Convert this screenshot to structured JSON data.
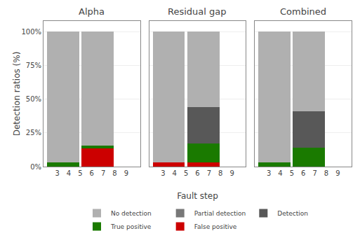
{
  "chart_data": [
    {
      "type": "bar",
      "stacked": true,
      "title": "Alpha",
      "ylabel": "Detection ratios (%)",
      "x": [
        3.5,
        6.5
      ],
      "xlim": [
        1.8,
        10.2
      ],
      "xticks": [
        3,
        4,
        5,
        6,
        7,
        8,
        9
      ],
      "ylim": [
        0,
        108
      ],
      "yticks": [
        {
          "value": 0,
          "label": "0%"
        },
        {
          "value": 25,
          "label": "25%"
        },
        {
          "value": 50,
          "label": "50%"
        },
        {
          "value": 75,
          "label": "75%"
        },
        {
          "value": 100,
          "label": "100%"
        }
      ],
      "grid": true,
      "legend": "bottom",
      "series": [
        {
          "name": "False positive",
          "color": "#cc0000",
          "values": [
            0,
            13.333333333333334
          ]
        },
        {
          "name": "True positive",
          "color": "#1a7a00",
          "values": [
            3,
            2.2222222222222223
          ]
        },
        {
          "name": "Detection",
          "color": "#585858",
          "values": [
            0,
            0
          ]
        },
        {
          "name": "Partial detection",
          "color": "#787878",
          "values": [
            0,
            0
          ]
        },
        {
          "name": "No detection",
          "color": "#b0b0b0",
          "values": [
            97,
            84.44444444444444
          ]
        }
      ]
    },
    {
      "type": "bar",
      "stacked": true,
      "title": "Residual gap",
      "xlabel": "Fault step",
      "x": [
        3.5,
        6.5
      ],
      "xlim": [
        1.8,
        10.2
      ],
      "xticks": [
        3,
        4,
        5,
        6,
        7,
        8,
        9
      ],
      "ylim": [
        0,
        108
      ],
      "yticks": [
        0,
        25,
        50,
        75,
        100
      ],
      "grid": true,
      "tick_labels": "x",
      "series": [
        {
          "name": "False positive",
          "color": "#cc0000",
          "values": [
            3,
            3
          ]
        },
        {
          "name": "True positive",
          "color": "#1a7a00",
          "values": [
            0,
            14
          ]
        },
        {
          "name": "Detection",
          "color": "#585858",
          "values": [
            0,
            27
          ]
        },
        {
          "name": "Partial detection",
          "color": "#787878",
          "values": [
            0,
            0
          ]
        },
        {
          "name": "No detection",
          "color": "#b0b0b0",
          "values": [
            97,
            56
          ]
        }
      ]
    },
    {
      "type": "bar",
      "stacked": true,
      "title": "Combined",
      "x": [
        3.5,
        6.5
      ],
      "xlim": [
        1.8,
        10.2
      ],
      "xticks": [
        3,
        4,
        5,
        6,
        7,
        8,
        9
      ],
      "ylim": [
        0,
        108
      ],
      "yticks": [
        0,
        25,
        50,
        75,
        100
      ],
      "grid": true,
      "tick_labels": "x",
      "series": [
        {
          "name": "False positive",
          "color": "#cc0000",
          "values": [
            0,
            0
          ]
        },
        {
          "name": "True positive",
          "color": "#1a7a00",
          "values": [
            3,
            14
          ]
        },
        {
          "name": "Detection",
          "color": "#585858",
          "values": [
            0,
            27
          ]
        },
        {
          "name": "Partial detection",
          "color": "#787878",
          "values": [
            0,
            0
          ]
        },
        {
          "name": "No detection",
          "color": "#b0b0b0",
          "values": [
            97,
            59
          ]
        }
      ]
    }
  ]
}
